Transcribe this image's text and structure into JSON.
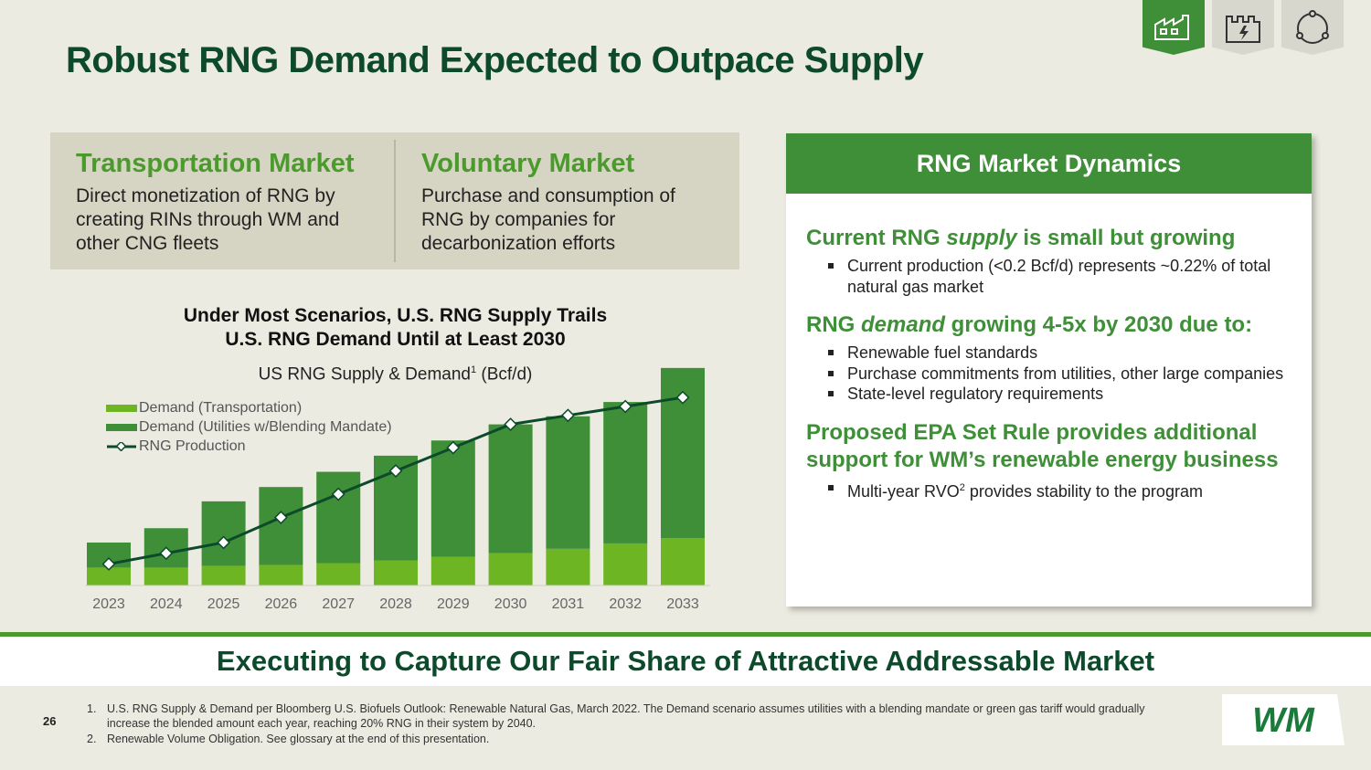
{
  "title": "Robust RNG Demand Expected to Outpace Supply",
  "nav_icons": [
    "landfill-icon",
    "power-plant-icon",
    "cycle-icon"
  ],
  "markets": [
    {
      "title": "Transportation Market",
      "text": "Direct monetization of RNG by creating RINs through WM and other CNG fleets"
    },
    {
      "title": "Voluntary Market",
      "text": "Purchase and consumption of RNG by companies for decarbonization efforts"
    }
  ],
  "chart": {
    "title_line1": "Under Most Scenarios, U.S. RNG Supply Trails",
    "title_line2": "U.S. RNG Demand Until at Least 2030",
    "subtitle": "US RNG Supply & Demand",
    "subtitle_sup": "1",
    "subtitle_unit": " (Bcf/d)"
  },
  "chart_data": {
    "type": "bar",
    "categories": [
      "2023",
      "2024",
      "2025",
      "2026",
      "2027",
      "2028",
      "2029",
      "2030",
      "2031",
      "2032",
      "2033"
    ],
    "series": [
      {
        "name": "Demand (Transportation)",
        "kind": "stacked-bar",
        "color": "#6db522",
        "values": [
          0.2,
          0.2,
          0.22,
          0.23,
          0.25,
          0.28,
          0.32,
          0.36,
          0.41,
          0.47,
          0.53
        ]
      },
      {
        "name": "Demand (Utilities w/Blending Mandate)",
        "kind": "stacked-bar",
        "color": "#3e8f37",
        "values": [
          0.28,
          0.44,
          0.72,
          0.87,
          1.02,
          1.17,
          1.3,
          1.44,
          1.48,
          1.58,
          1.9
        ]
      },
      {
        "name": "RNG Production",
        "kind": "line",
        "color": "#0d4a2b",
        "values": [
          0.24,
          0.36,
          0.48,
          0.76,
          1.02,
          1.28,
          1.54,
          1.8,
          1.9,
          2.0,
          2.1
        ]
      }
    ],
    "ylim": [
      0,
      2.5
    ],
    "grid": false,
    "legend_position": "top-left"
  },
  "panel": {
    "header": "RNG Market Dynamics",
    "s1_pre": "Current RNG ",
    "s1_em": "supply",
    "s1_post": " is small but growing",
    "s1_b1": "Current production (<0.2 Bcf/d) represents ~0.22% of total natural gas market",
    "s2_pre": "RNG ",
    "s2_em": "demand",
    "s2_post": " growing 4-5x by 2030 due to:",
    "s2_b1": "Renewable fuel standards",
    "s2_b2": "Purchase commitments from utilities, other large companies",
    "s2_b3": "State-level regulatory requirements",
    "s3": "Proposed EPA Set Rule provides additional support for WM’s renewable energy business",
    "s3_b1_pre": "Multi-year RVO",
    "s3_b1_sup": "2",
    "s3_b1_post": " provides stability to the program"
  },
  "banner": "Executing to Capture Our Fair Share of Attractive Addressable Market",
  "page_number": "26",
  "footnotes": [
    {
      "num": "1.",
      "text": "U.S. RNG Supply & Demand per Bloomberg U.S. Biofuels Outlook: Renewable Natural Gas, March 2022. The Demand scenario assumes utilities with a blending mandate or green gas tariff would gradually increase the blended amount each year, reaching 20% RNG in their system by 2040."
    },
    {
      "num": "2.",
      "text": "Renewable Volume Obligation. See glossary at the end of this presentation."
    }
  ],
  "logo": "WM",
  "colors": {
    "dark_green": "#0d4a2b",
    "mid_green": "#3e8f37",
    "light_green": "#6db522",
    "background": "#ecebe1"
  }
}
